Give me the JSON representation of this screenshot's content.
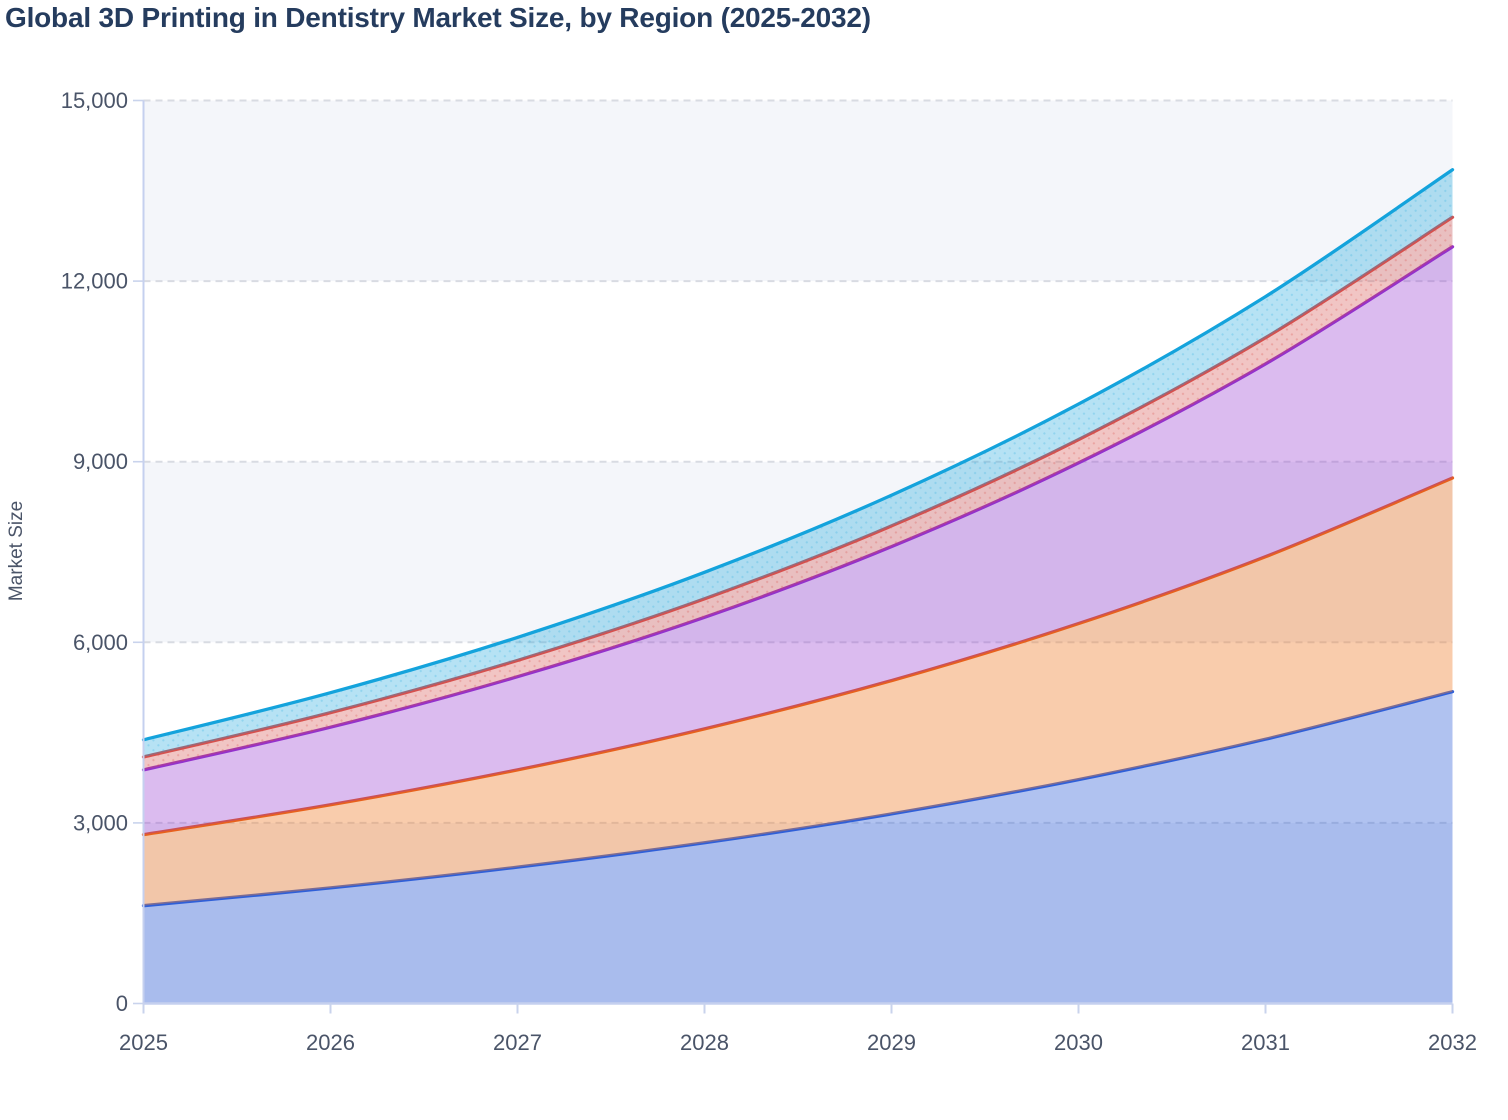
{
  "page": {
    "title": "Global 3D Printing in Dentistry Market Size, by Region (2025-2032)"
  },
  "chart_data": {
    "type": "area",
    "stacked": true,
    "title": "Global 3D Printing in Dentistry Market Size, by Region (2025-2032)",
    "xlabel": "",
    "ylabel": "Market Size",
    "x": [
      2025,
      2026,
      2027,
      2028,
      2029,
      2030,
      2031,
      2032
    ],
    "x_tick_labels": [
      "2025",
      "2026",
      "2027",
      "2028",
      "2029",
      "2030",
      "2031",
      "2032"
    ],
    "y_tick_values": [
      0,
      3000,
      6000,
      9000,
      12000,
      15000
    ],
    "y_tick_labels": [
      "0",
      "3,000",
      "6,000",
      "9,000",
      "12,000",
      "15,000"
    ],
    "ylim": [
      0,
      15000
    ],
    "grid": "horizontal dashed gridlines at every 3,000; alternating horizontal background bands",
    "legend_position": "none",
    "series": [
      {
        "name": "blue",
        "stroke": "#2f5fd8",
        "fill": "rgba(47,95,216,0.38)",
        "values": [
          1625,
          1920,
          2265,
          2670,
          3150,
          3720,
          4390,
          5180
        ]
      },
      {
        "name": "orange",
        "stroke": "#e8611c",
        "fill": "rgba(240,128,48,0.40)",
        "values": [
          1180,
          1381,
          1616,
          1891,
          2214,
          2591,
          3032,
          3550
        ]
      },
      {
        "name": "purple",
        "stroke": "#9331cd",
        "fill": "rgba(147,49,205,0.33)",
        "values": [
          1075,
          1289,
          1547,
          1855,
          2225,
          2669,
          3202,
          3840
        ]
      },
      {
        "name": "red",
        "stroke": "#d6504d",
        "fill": "rgba(214,80,77,0.33)",
        "texture": "dots",
        "dot_color": "rgba(214,80,77,0.28)",
        "values": [
          215,
          242,
          272,
          306,
          344,
          387,
          436,
          490
        ]
      },
      {
        "name": "cyan",
        "stroke": "#14a3dc",
        "fill": "rgba(20,163,220,0.31)",
        "texture": "dots",
        "dot_color": "rgba(20,163,220,0.22)",
        "values": [
          285,
          330,
          381,
          441,
          510,
          590,
          683,
          790
        ]
      }
    ],
    "stacked_totals": [
      4380,
      5162,
      6081,
      7163,
      8443,
      9957,
      11743,
      13850
    ]
  },
  "colors": {
    "title_text": "#253c5e",
    "axis_text": "#4a5468",
    "grid_line": "#d8dbe2",
    "axis_line": "#c5d0ef",
    "tick_mark": "#c9d3ec",
    "band_fill": "#f4f6fa",
    "page_background": "#ffffff"
  }
}
